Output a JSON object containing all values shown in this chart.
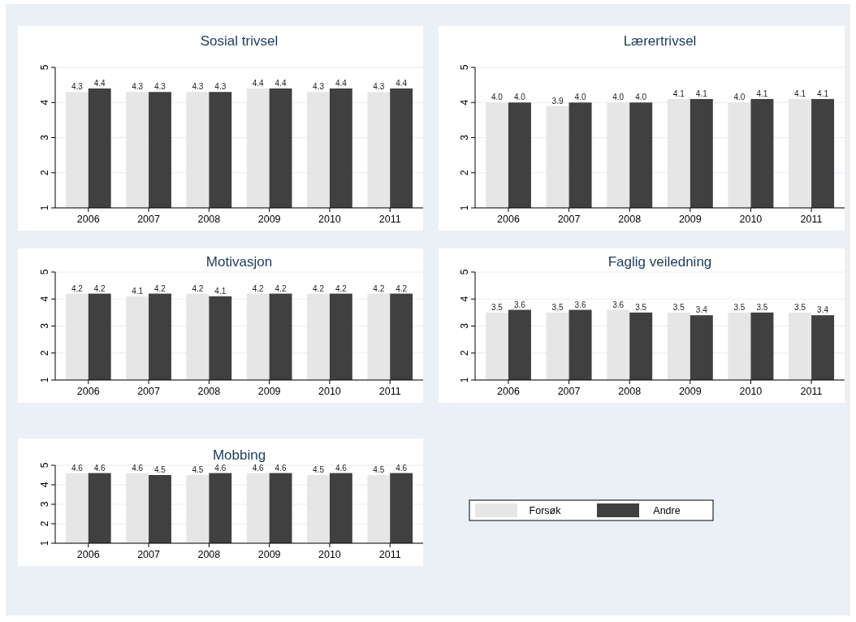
{
  "chart_data": [
    {
      "type": "bar",
      "title": "Sosial trivsel",
      "categories": [
        "2006",
        "2007",
        "2008",
        "2009",
        "2010",
        "2011"
      ],
      "ylim": [
        1,
        5
      ],
      "yticks": [
        1,
        2,
        3,
        4,
        5
      ],
      "grid": "y",
      "legend": false,
      "series": [
        {
          "color": "#e6e6e6",
          "values": [
            4.3,
            4.3,
            4.3,
            4.4,
            4.3,
            4.3
          ],
          "value_labels": [
            "4.3",
            "4.3",
            "4.3",
            "4.4",
            "4.3",
            "4.3"
          ]
        },
        {
          "color": "#404040",
          "values": [
            4.4,
            4.3,
            4.3,
            4.4,
            4.4,
            4.4
          ],
          "value_labels": [
            "4.4",
            "4.3",
            "4.3",
            "4.4",
            "4.4",
            "4.4"
          ]
        }
      ]
    },
    {
      "type": "bar",
      "title": "Lærertrivsel",
      "categories": [
        "2006",
        "2007",
        "2008",
        "2009",
        "2010",
        "2011"
      ],
      "ylim": [
        1,
        5
      ],
      "yticks": [
        1,
        2,
        3,
        4,
        5
      ],
      "grid": "y",
      "legend": false,
      "series": [
        {
          "color": "#e6e6e6",
          "values": [
            4.0,
            3.9,
            4.0,
            4.1,
            4.0,
            4.1
          ],
          "value_labels": [
            "4.0",
            "3.9",
            "4.0",
            "4.1",
            "4.0",
            "4.1"
          ]
        },
        {
          "color": "#404040",
          "values": [
            4.0,
            4.0,
            4.0,
            4.1,
            4.1,
            4.1
          ],
          "value_labels": [
            "4.0",
            "4.0",
            "4.0",
            "4.1",
            "4.1",
            "4.1"
          ]
        }
      ]
    },
    {
      "type": "bar",
      "title": "Motivasjon",
      "categories": [
        "2006",
        "2007",
        "2008",
        "2009",
        "2010",
        "2011"
      ],
      "ylim": [
        1,
        5
      ],
      "yticks": [
        1,
        2,
        3,
        4,
        5
      ],
      "grid": "y",
      "legend": false,
      "series": [
        {
          "color": "#e6e6e6",
          "values": [
            4.2,
            4.1,
            4.2,
            4.2,
            4.2,
            4.2
          ],
          "value_labels": [
            "4.2",
            "4.1",
            "4.2",
            "4.2",
            "4.2",
            "4.2"
          ]
        },
        {
          "color": "#404040",
          "values": [
            4.2,
            4.2,
            4.1,
            4.2,
            4.2,
            4.2
          ],
          "value_labels": [
            "4.2",
            "4.2",
            "4.1",
            "4.2",
            "4.2",
            "4.2"
          ]
        }
      ]
    },
    {
      "type": "bar",
      "title": "Faglig veiledning",
      "categories": [
        "2006",
        "2007",
        "2008",
        "2009",
        "2010",
        "2011"
      ],
      "ylim": [
        1,
        5
      ],
      "yticks": [
        1,
        2,
        3,
        4,
        5
      ],
      "grid": "y",
      "legend": false,
      "series": [
        {
          "color": "#e6e6e6",
          "values": [
            3.5,
            3.5,
            3.6,
            3.5,
            3.5,
            3.5
          ],
          "value_labels": [
            "3.5",
            "3.5",
            "3.6",
            "3.5",
            "3.5",
            "3.5"
          ]
        },
        {
          "color": "#404040",
          "values": [
            3.6,
            3.6,
            3.5,
            3.4,
            3.5,
            3.4
          ],
          "value_labels": [
            "3.6",
            "3.6",
            "3.5",
            "3.4",
            "3.5",
            "3.4"
          ]
        }
      ]
    },
    {
      "type": "bar",
      "title": "Mobbing",
      "categories": [
        "2006",
        "2007",
        "2008",
        "2009",
        "2010",
        "2011"
      ],
      "ylim": [
        1,
        5
      ],
      "yticks": [
        1,
        2,
        3,
        4,
        5
      ],
      "grid": "y",
      "legend": "right",
      "series": [
        {
          "name": "Forsøk",
          "color": "#e6e6e6",
          "values": [
            4.6,
            4.6,
            4.5,
            4.6,
            4.5,
            4.5
          ],
          "value_labels": [
            "4.6",
            "4.6",
            "4.5",
            "4.6",
            "4.5",
            "4.5"
          ]
        },
        {
          "name": "Andre",
          "color": "#404040",
          "values": [
            4.6,
            4.5,
            4.6,
            4.6,
            4.6,
            4.6
          ],
          "value_labels": [
            "4.6",
            "4.5",
            "4.6",
            "4.6",
            "4.6",
            "4.6"
          ]
        }
      ]
    }
  ]
}
